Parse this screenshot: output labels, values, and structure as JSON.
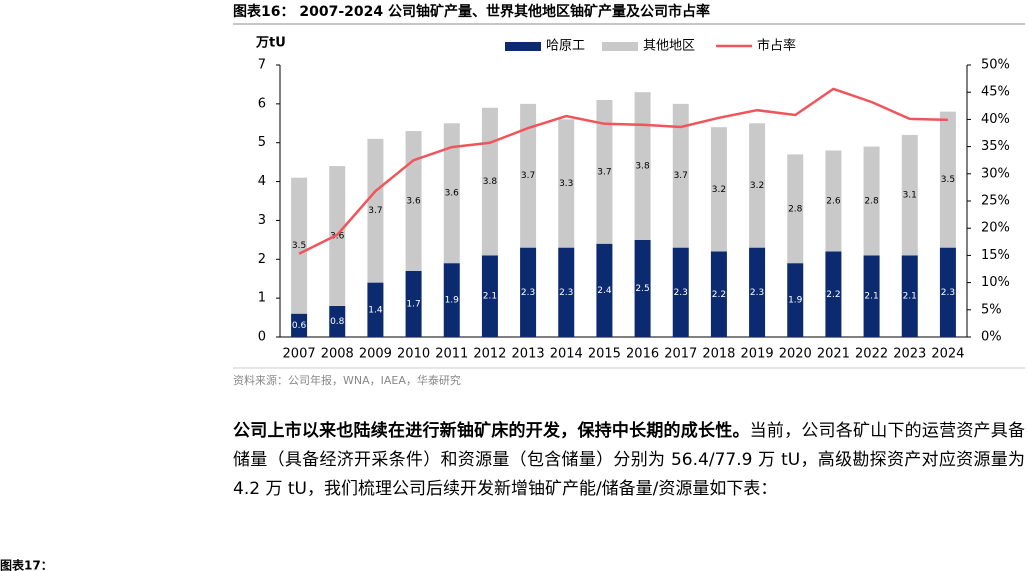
{
  "header": {
    "title": "图表16： 2007-2024 公司铀矿产量、世界其他地区铀矿产量及公司市占率"
  },
  "chart_data": {
    "type": "bar",
    "y_label": "万tU",
    "categories": [
      "2007",
      "2008",
      "2009",
      "2010",
      "2011",
      "2012",
      "2013",
      "2014",
      "2015",
      "2016",
      "2017",
      "2018",
      "2019",
      "2020",
      "2021",
      "2022",
      "2023",
      "2024"
    ],
    "series": [
      {
        "name": "哈原工",
        "color": "#0b2a6f",
        "values": [
          0.6,
          0.8,
          1.4,
          1.7,
          1.9,
          2.1,
          2.3,
          2.3,
          2.4,
          2.5,
          2.3,
          2.2,
          2.3,
          1.9,
          2.2,
          2.1,
          2.1,
          2.3
        ]
      },
      {
        "name": "其他地区",
        "color": "#c9c9c9",
        "values": [
          3.5,
          3.6,
          3.7,
          3.6,
          3.6,
          3.8,
          3.7,
          3.3,
          3.7,
          3.8,
          3.7,
          3.2,
          3.2,
          2.8,
          2.6,
          2.8,
          3.1,
          3.5
        ]
      },
      {
        "name": "市占率",
        "type": "line",
        "axis": "y2",
        "color": "#f1545a",
        "values": [
          15.3,
          18.8,
          26.8,
          32.5,
          34.9,
          35.7,
          38.4,
          40.6,
          39.2,
          39.0,
          38.6,
          40.3,
          41.7,
          40.8,
          45.6,
          43.2,
          40.1,
          39.9
        ]
      }
    ],
    "ylim": [
      0,
      7
    ],
    "yticks": [
      0,
      1,
      2,
      3,
      4,
      5,
      6,
      7
    ],
    "y2lim": [
      0,
      50
    ],
    "y2ticks": [
      {
        "value": 0,
        "label": "0%"
      },
      {
        "value": 5,
        "label": "5%"
      },
      {
        "value": 10,
        "label": "10%"
      },
      {
        "value": 15,
        "label": "15%"
      },
      {
        "value": 20,
        "label": "20%"
      },
      {
        "value": 25,
        "label": "25%"
      },
      {
        "value": 30,
        "label": "30%"
      },
      {
        "value": 35,
        "label": "35%"
      },
      {
        "value": 40,
        "label": "40%"
      },
      {
        "value": 45,
        "label": "45%"
      },
      {
        "value": 50,
        "label": "50%"
      }
    ],
    "stacked": true,
    "grid": false
  },
  "source": "资料来源：公司年报，WNA，IAEA，华泰研究",
  "paragraph": {
    "bold": "公司上市以来也陆续在进行新铀矿床的开发，保持中长期的成长性。",
    "text": "当前，公司各矿山下的运营资产具备储量（具备经济开采条件）和资源量（包含储量）分别为 56.4/77.9 万 tU，高级勘探资产对应资源量为 4.2 万 tU，我们梳理公司后续开发新增铀矿产能/储备量/资源量如下表："
  },
  "next_caption": "图表17："
}
